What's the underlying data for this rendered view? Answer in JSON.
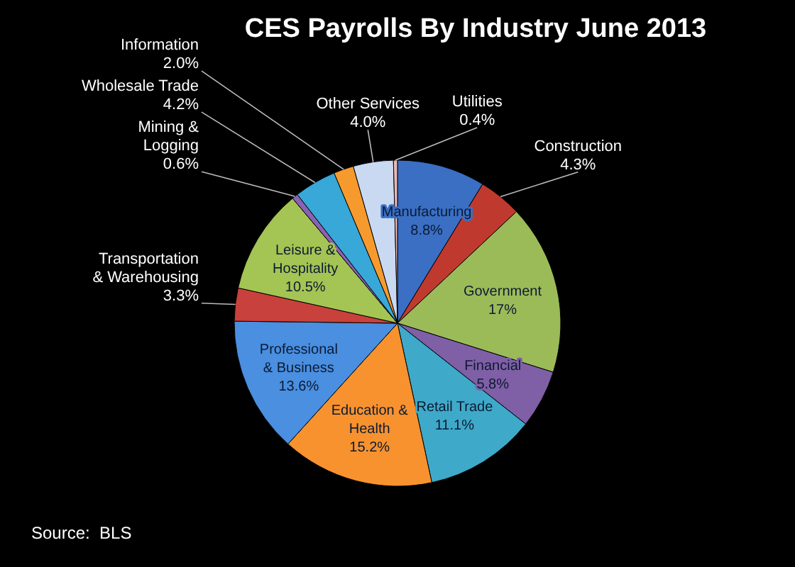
{
  "chart_data": {
    "type": "pie",
    "title": "CES Payrolls By Industry June 2013",
    "categories": [
      "Manufacturing",
      "Construction",
      "Government",
      "Financial",
      "Retail Trade",
      "Education & Health",
      "Professional & Business",
      "Transportation & Warehousing",
      "Leisure & Hospitality",
      "Mining & Logging",
      "Wholesale Trade",
      "Information",
      "Other Services",
      "Utilities"
    ],
    "values": [
      8.8,
      4.3,
      17,
      5.8,
      11.1,
      15.2,
      13.6,
      3.3,
      10.5,
      0.6,
      4.2,
      2.0,
      4.0,
      0.4
    ],
    "value_labels": [
      "8.8%",
      "4.3%",
      "17%",
      "5.8%",
      "11.1%",
      "15.2%",
      "13.6%",
      "3.3%",
      "10.5%",
      "0.6%",
      "4.2%",
      "2.0%",
      "4.0%",
      "0.4%"
    ],
    "colors": [
      "#3a6fc4",
      "#c0392f",
      "#9bbb59",
      "#7f5fa6",
      "#3fa9c9",
      "#f7922f",
      "#4a8fe0",
      "#c8413c",
      "#a4c454",
      "#8a62b3",
      "#37a8d8",
      "#f79a2e",
      "#c9d9f2",
      "#e8b7b3"
    ],
    "annotations": [
      "Source:  BLS"
    ]
  }
}
